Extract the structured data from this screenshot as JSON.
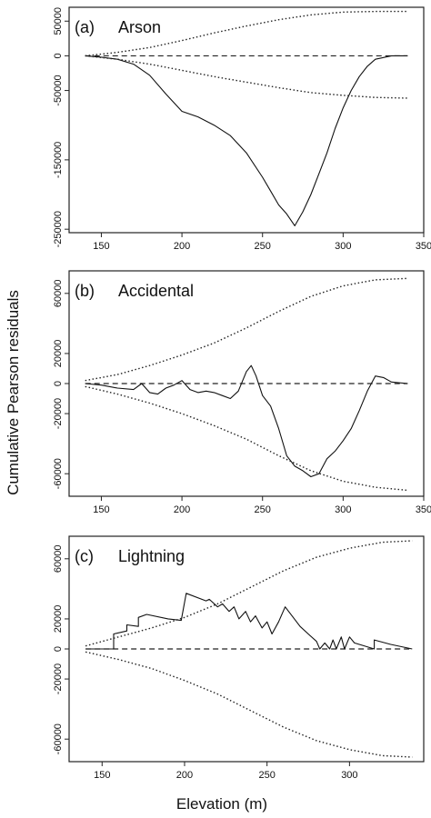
{
  "figure": {
    "ylabel": "Cumulative Pearson residuals",
    "xlabel": "Elevation (m)"
  },
  "chart_data": [
    {
      "type": "line",
      "title": "(a)",
      "subtitle": "Arson",
      "xlim": [
        130,
        350
      ],
      "ylim": [
        -255000,
        70000
      ],
      "xticks": [
        150,
        200,
        250,
        300,
        350
      ],
      "yticks": [
        50000,
        0,
        -50000,
        -150000,
        -250000
      ],
      "ytick_labels": [
        "50000",
        "0",
        "-50000",
        "-150000",
        "-250000"
      ],
      "reference_y": 0,
      "series": [
        {
          "role": "observed",
          "x": [
            140,
            150,
            160,
            170,
            180,
            190,
            200,
            210,
            220,
            230,
            240,
            250,
            255,
            260,
            265,
            270,
            275,
            280,
            285,
            290,
            295,
            300,
            305,
            310,
            315,
            320,
            330,
            340
          ],
          "y": [
            0,
            -2000,
            -5000,
            -12000,
            -28000,
            -55000,
            -80000,
            -88000,
            -100000,
            -115000,
            -140000,
            -175000,
            -195000,
            -215000,
            -228000,
            -245000,
            -225000,
            -200000,
            -170000,
            -140000,
            -105000,
            -75000,
            -50000,
            -30000,
            -15000,
            -5000,
            0,
            0
          ]
        },
        {
          "role": "upper-envelope",
          "x": [
            140,
            160,
            180,
            200,
            220,
            240,
            260,
            280,
            300,
            320,
            340
          ],
          "y": [
            0,
            5000,
            12000,
            22000,
            33000,
            43000,
            52000,
            59000,
            63000,
            64000,
            64000
          ]
        },
        {
          "role": "lower-envelope",
          "x": [
            140,
            160,
            180,
            200,
            220,
            240,
            260,
            280,
            300,
            320,
            340
          ],
          "y": [
            0,
            -5000,
            -12000,
            -21000,
            -30000,
            -38000,
            -46000,
            -53000,
            -57000,
            -60000,
            -61000
          ]
        }
      ]
    },
    {
      "type": "line",
      "title": "(b)",
      "subtitle": "Accidental",
      "xlim": [
        130,
        350
      ],
      "ylim": [
        -75000,
        75000
      ],
      "xticks": [
        150,
        200,
        250,
        300,
        350
      ],
      "yticks": [
        60000,
        20000,
        0,
        -20000,
        -60000
      ],
      "ytick_labels": [
        "60000",
        "20000",
        "0",
        "-20000",
        "-60000"
      ],
      "reference_y": 0,
      "series": [
        {
          "role": "observed",
          "x": [
            140,
            150,
            160,
            170,
            175,
            180,
            185,
            190,
            195,
            200,
            205,
            210,
            215,
            220,
            225,
            230,
            235,
            240,
            243,
            246,
            250,
            255,
            260,
            265,
            270,
            275,
            280,
            285,
            290,
            295,
            300,
            305,
            310,
            315,
            320,
            325,
            330,
            340
          ],
          "y": [
            0,
            -1000,
            -3000,
            -4000,
            0,
            -6000,
            -7000,
            -3000,
            -1000,
            2000,
            -4000,
            -6000,
            -5000,
            -6000,
            -8000,
            -10000,
            -5000,
            8000,
            12000,
            5000,
            -8000,
            -15000,
            -30000,
            -48000,
            -55000,
            -58000,
            -62000,
            -60000,
            -50000,
            -45000,
            -38000,
            -30000,
            -18000,
            -5000,
            5000,
            4000,
            1000,
            0
          ]
        },
        {
          "role": "upper-envelope",
          "x": [
            140,
            160,
            180,
            200,
            220,
            240,
            260,
            280,
            300,
            320,
            340
          ],
          "y": [
            2000,
            6000,
            12000,
            19000,
            27000,
            37000,
            48000,
            58000,
            65000,
            69000,
            70000
          ]
        },
        {
          "role": "lower-envelope",
          "x": [
            140,
            160,
            180,
            200,
            220,
            240,
            260,
            280,
            300,
            320,
            340
          ],
          "y": [
            -2000,
            -7000,
            -13000,
            -20000,
            -28000,
            -37000,
            -48000,
            -58000,
            -65000,
            -69000,
            -71000
          ]
        }
      ]
    },
    {
      "type": "line",
      "title": "(c)",
      "subtitle": "Lightning",
      "xlim": [
        130,
        345
      ],
      "ylim": [
        -75000,
        75000
      ],
      "xticks": [
        150,
        200,
        250,
        300
      ],
      "yticks": [
        60000,
        20000,
        0,
        -20000,
        -60000
      ],
      "ytick_labels": [
        "60000",
        "20000",
        "0",
        "-20000",
        "-60000"
      ],
      "reference_y": 0,
      "series": [
        {
          "role": "observed",
          "x": [
            140,
            157,
            157,
            165,
            165,
            172,
            172,
            177,
            177,
            190,
            198,
            201,
            201,
            213,
            215,
            220,
            223,
            227,
            230,
            233,
            237,
            240,
            243,
            247,
            250,
            253,
            257,
            261,
            270,
            275,
            280,
            282,
            285,
            288,
            290,
            292,
            295,
            297,
            300,
            303,
            315,
            315,
            325,
            338
          ],
          "y": [
            0,
            0,
            10000,
            12000,
            16000,
            15000,
            21000,
            23000,
            23000,
            20000,
            19000,
            37000,
            37000,
            32000,
            33000,
            28000,
            30000,
            25000,
            28000,
            20000,
            25000,
            18000,
            22000,
            14000,
            18000,
            10000,
            18000,
            28000,
            15000,
            10000,
            5000,
            0,
            4000,
            0,
            6000,
            0,
            8000,
            0,
            8000,
            4000,
            0,
            6000,
            3000,
            0
          ]
        },
        {
          "role": "upper-envelope",
          "x": [
            140,
            160,
            180,
            200,
            220,
            240,
            260,
            280,
            300,
            320,
            338
          ],
          "y": [
            2000,
            8000,
            14000,
            21000,
            30000,
            41000,
            52000,
            61000,
            67000,
            71000,
            72000
          ]
        },
        {
          "role": "lower-envelope",
          "x": [
            140,
            160,
            180,
            200,
            220,
            240,
            260,
            280,
            300,
            320,
            338
          ],
          "y": [
            -2000,
            -7000,
            -13000,
            -21000,
            -30000,
            -41000,
            -52000,
            -61000,
            -67000,
            -71000,
            -72000
          ]
        }
      ]
    }
  ]
}
